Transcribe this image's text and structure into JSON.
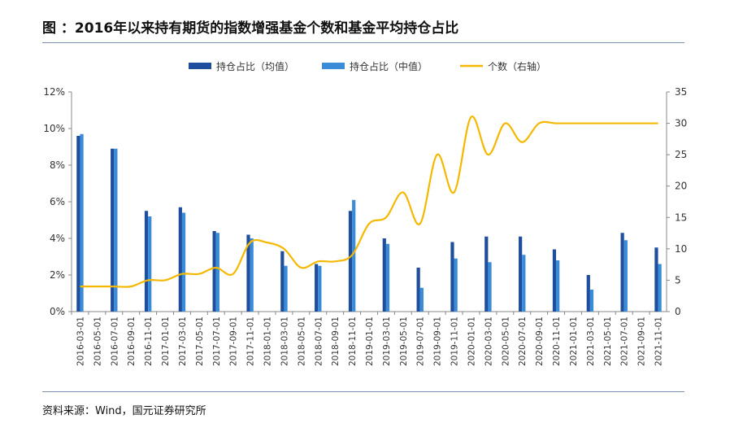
{
  "title": "图 ：2016年以来持有期货的指数增强基金个数和基金平均持仓占比",
  "source": "资料来源：Wind，国元证券研究所",
  "colors": {
    "mean_bar": "#1f4e9c",
    "median_bar": "#3a8bd8",
    "count_line": "#f5b800",
    "axis": "#888888"
  },
  "chart_data": {
    "type": "bar",
    "categories": [
      "2016-03-01",
      "2016-05-01",
      "2016-07-01",
      "2016-09-01",
      "2016-11-01",
      "2017-01-01",
      "2017-03-01",
      "2017-05-01",
      "2017-07-01",
      "2017-09-01",
      "2017-11-01",
      "2018-01-01",
      "2018-03-01",
      "2018-05-01",
      "2018-07-01",
      "2018-09-01",
      "2018-11-01",
      "2019-01-01",
      "2019-03-01",
      "2019-05-01",
      "2019-07-01",
      "2019-09-01",
      "2019-11-01",
      "2020-01-01",
      "2020-03-01",
      "2020-05-01",
      "2020-07-01",
      "2020-09-01",
      "2020-11-01",
      "2021-01-01",
      "2021-03-01",
      "2021-05-01",
      "2021-07-01",
      "2021-09-01",
      "2021-11-01"
    ],
    "series": [
      {
        "name": "持仓占比（均值）",
        "type": "bar",
        "axis": "left",
        "values": [
          9.6,
          null,
          8.9,
          null,
          5.5,
          null,
          5.7,
          null,
          4.4,
          null,
          4.2,
          null,
          3.3,
          null,
          2.6,
          null,
          5.5,
          null,
          4.0,
          null,
          2.4,
          null,
          3.8,
          null,
          4.1,
          null,
          4.1,
          null,
          3.4,
          null,
          2.0,
          null,
          4.3,
          null,
          3.5
        ]
      },
      {
        "name": "持仓占比（中值）",
        "type": "bar",
        "axis": "left",
        "values": [
          9.7,
          null,
          8.9,
          null,
          5.2,
          null,
          5.4,
          null,
          4.3,
          null,
          4.0,
          null,
          2.5,
          null,
          2.5,
          null,
          6.1,
          null,
          3.7,
          null,
          1.3,
          null,
          2.9,
          null,
          2.7,
          null,
          3.1,
          null,
          2.8,
          null,
          1.2,
          null,
          3.9,
          null,
          2.6
        ]
      },
      {
        "name": "个数（右轴）",
        "type": "line",
        "axis": "right",
        "values": [
          4,
          4,
          4,
          4,
          5,
          5,
          6,
          6,
          7,
          6,
          11,
          11,
          10,
          7,
          8,
          8,
          9,
          14,
          15,
          19,
          14,
          25,
          19,
          31,
          25,
          30,
          27,
          30,
          30,
          30,
          30,
          30,
          30,
          30,
          30
        ]
      }
    ],
    "y_left": {
      "min": 0,
      "max": 12,
      "step": 2,
      "format": "percent",
      "ticks": [
        "0%",
        "2%",
        "4%",
        "6%",
        "8%",
        "10%",
        "12%"
      ]
    },
    "y_right": {
      "min": 0,
      "max": 35,
      "step": 5,
      "ticks": [
        "0",
        "5",
        "10",
        "15",
        "20",
        "25",
        "30",
        "35"
      ]
    },
    "legend": {
      "position": "top"
    },
    "grid": false
  }
}
